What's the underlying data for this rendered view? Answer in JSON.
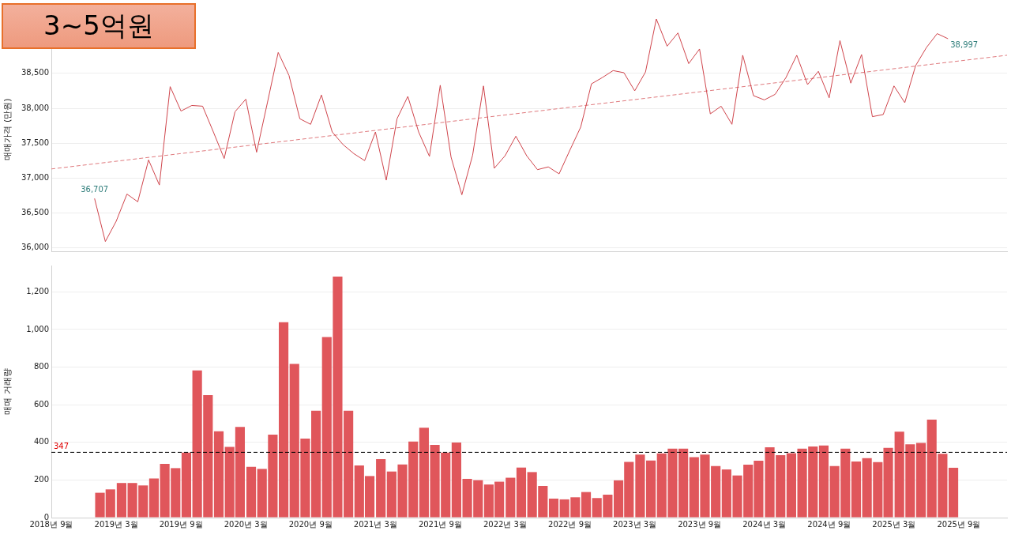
{
  "chart_data": [
    {
      "type": "line",
      "title": "3~5억원",
      "ylabel": "매매가격 (만원)",
      "xlim": [
        "2018-09",
        "2026-01-15"
      ],
      "ylim": [
        35950,
        39450
      ],
      "yticks": [
        {
          "value": 36000,
          "label": "36,000"
        },
        {
          "value": 36500,
          "label": "36,500"
        },
        {
          "value": 37000,
          "label": "37,000"
        },
        {
          "value": 37500,
          "label": "37,500"
        },
        {
          "value": 38000,
          "label": "38,000"
        },
        {
          "value": 38500,
          "label": "38,500"
        }
      ],
      "tick_labels": "y",
      "grid": "y",
      "legend": false,
      "marker": "none",
      "x": [
        "2019-01",
        "2019-02",
        "2019-03",
        "2019-04",
        "2019-05",
        "2019-06",
        "2019-07",
        "2019-08",
        "2019-09",
        "2019-10",
        "2019-11",
        "2019-12",
        "2020-01",
        "2020-02",
        "2020-03",
        "2020-04",
        "2020-05",
        "2020-06",
        "2020-07",
        "2020-08",
        "2020-09",
        "2020-10",
        "2020-11",
        "2020-12",
        "2021-01",
        "2021-02",
        "2021-03",
        "2021-04",
        "2021-05",
        "2021-06",
        "2021-07",
        "2021-08",
        "2021-09",
        "2021-10",
        "2021-11",
        "2021-12",
        "2022-01",
        "2022-02",
        "2022-03",
        "2022-04",
        "2022-05",
        "2022-06",
        "2022-07",
        "2022-08",
        "2022-09",
        "2022-10",
        "2022-11",
        "2022-12",
        "2023-01",
        "2023-02",
        "2023-03",
        "2023-04",
        "2023-05",
        "2023-06",
        "2023-07",
        "2023-08",
        "2023-09",
        "2023-10",
        "2023-11",
        "2023-12",
        "2024-01",
        "2024-02",
        "2024-03",
        "2024-04",
        "2024-05",
        "2024-06",
        "2024-07",
        "2024-08",
        "2024-09",
        "2024-10",
        "2024-11",
        "2024-12",
        "2025-01",
        "2025-02",
        "2025-03",
        "2025-04",
        "2025-05",
        "2025-06",
        "2025-07",
        "2025-08"
      ],
      "series": [
        {
          "color": "#d0454c",
          "line_style": "solid",
          "values": [
            36707,
            36090,
            36380,
            36770,
            36660,
            37260,
            36900,
            38310,
            37960,
            38040,
            38030,
            37660,
            37280,
            37950,
            38130,
            37370,
            38080,
            38800,
            38470,
            37850,
            37770,
            38190,
            37660,
            37480,
            37350,
            37250,
            37660,
            36970,
            37850,
            38170,
            37660,
            37310,
            38330,
            37300,
            36760,
            37330,
            38320,
            37140,
            37320,
            37600,
            37320,
            37120,
            37160,
            37060,
            37400,
            37730,
            38350,
            38440,
            38540,
            38510,
            38250,
            38520,
            39280,
            38890,
            39080,
            38640,
            38850,
            37920,
            38030,
            37770,
            38760,
            38180,
            38120,
            38200,
            38440,
            38760,
            38340,
            38530,
            38150,
            38970,
            38360,
            38770,
            37880,
            37910,
            38320,
            38080,
            38610,
            38870,
            39070,
            38997
          ],
          "value_labels": [
            "36,707",
            null,
            null,
            null,
            null,
            null,
            null,
            null,
            null,
            null,
            null,
            null,
            null,
            null,
            null,
            null,
            null,
            null,
            null,
            null,
            null,
            null,
            null,
            null,
            null,
            null,
            null,
            null,
            null,
            null,
            null,
            null,
            null,
            null,
            null,
            null,
            null,
            null,
            null,
            null,
            null,
            null,
            null,
            null,
            null,
            null,
            null,
            null,
            null,
            null,
            null,
            null,
            null,
            null,
            null,
            null,
            null,
            null,
            null,
            null,
            null,
            null,
            null,
            null,
            null,
            null,
            null,
            null,
            null,
            null,
            null,
            null,
            null,
            null,
            null,
            null,
            null,
            null,
            null,
            "38,997"
          ]
        },
        {
          "color": "#e07a7e",
          "line_style": "dashed",
          "x": [
            "2018-09",
            "2026-01-15"
          ],
          "values": [
            37130,
            38760
          ]
        }
      ]
    },
    {
      "type": "bar",
      "ylabel": "매매 거래량",
      "xlim": [
        "2018-09",
        "2026-01-15"
      ],
      "xticks": [
        {
          "value": "2018-09",
          "label": "2018년 9월"
        },
        {
          "value": "2019-03",
          "label": "2019년 3월"
        },
        {
          "value": "2019-09",
          "label": "2019년 9월"
        },
        {
          "value": "2020-03",
          "label": "2020년 3월"
        },
        {
          "value": "2020-09",
          "label": "2020년 9월"
        },
        {
          "value": "2021-03",
          "label": "2021년 3월"
        },
        {
          "value": "2021-09",
          "label": "2021년 9월"
        },
        {
          "value": "2022-03",
          "label": "2022년 3월"
        },
        {
          "value": "2022-09",
          "label": "2022년 9월"
        },
        {
          "value": "2023-03",
          "label": "2023년 3월"
        },
        {
          "value": "2023-09",
          "label": "2023년 9월"
        },
        {
          "value": "2024-03",
          "label": "2024년 3월"
        },
        {
          "value": "2024-09",
          "label": "2024년 9월"
        },
        {
          "value": "2025-03",
          "label": "2025년 3월"
        },
        {
          "value": "2025-09",
          "label": "2025년 9월"
        }
      ],
      "ylim": [
        0,
        1340
      ],
      "yticks": [
        0,
        200,
        400,
        600,
        800,
        {
          "value": 1000,
          "label": "1,000"
        },
        {
          "value": 1200,
          "label": "1,200"
        }
      ],
      "grid": "y",
      "legend": false,
      "x": [
        "2019-01-16",
        "2019-02-15",
        "2019-03-16",
        "2019-04-16",
        "2019-05-16",
        "2019-06-16",
        "2019-07-16",
        "2019-08-16",
        "2019-09-16",
        "2019-10-16",
        "2019-11-16",
        "2019-12-16",
        "2020-01-16",
        "2020-02-15",
        "2020-03-16",
        "2020-04-16",
        "2020-05-16",
        "2020-06-16",
        "2020-07-16",
        "2020-08-16",
        "2020-09-16",
        "2020-10-16",
        "2020-11-16",
        "2020-12-16",
        "2021-01-16",
        "2021-02-15",
        "2021-03-16",
        "2021-04-16",
        "2021-05-16",
        "2021-06-16",
        "2021-07-16",
        "2021-08-16",
        "2021-09-16",
        "2021-10-16",
        "2021-11-16",
        "2021-12-16",
        "2022-01-16",
        "2022-02-15",
        "2022-03-16",
        "2022-04-16",
        "2022-05-16",
        "2022-06-16",
        "2022-07-16",
        "2022-08-16",
        "2022-09-16",
        "2022-10-16",
        "2022-11-16",
        "2022-12-16",
        "2023-01-16",
        "2023-02-15",
        "2023-03-16",
        "2023-04-16",
        "2023-05-16",
        "2023-06-16",
        "2023-07-16",
        "2023-08-16",
        "2023-09-16",
        "2023-10-16",
        "2023-11-16",
        "2023-12-16",
        "2024-01-16",
        "2024-02-15",
        "2024-03-16",
        "2024-04-16",
        "2024-05-16",
        "2024-06-16",
        "2024-07-16",
        "2024-08-16",
        "2024-09-16",
        "2024-10-16",
        "2024-11-16",
        "2024-12-16",
        "2025-01-16",
        "2025-02-15",
        "2025-03-16",
        "2025-04-16",
        "2025-05-16",
        "2025-06-16",
        "2025-07-16",
        "2025-08-16"
      ],
      "series": [
        {
          "color": "#e0565b",
          "values": [
            132,
            150,
            184,
            184,
            171,
            208,
            286,
            263,
            346,
            782,
            651,
            459,
            376,
            482,
            270,
            259,
            441,
            1039,
            817,
            420,
            568,
            960,
            1281,
            568,
            277,
            221,
            311,
            245,
            282,
            404,
            478,
            386,
            346,
            399,
            206,
            199,
            176,
            191,
            212,
            266,
            242,
            168,
            101,
            97,
            108,
            136,
            104,
            122,
            198,
            296,
            335,
            304,
            341,
            367,
            367,
            321,
            335,
            274,
            256,
            224,
            281,
            302,
            374,
            332,
            342,
            367,
            378,
            383,
            274,
            367,
            298,
            316,
            295,
            371,
            457,
            390,
            397,
            521,
            339,
            265
          ]
        }
      ],
      "ref_lines": [
        {
          "axis": "y",
          "value": 347,
          "label": "347",
          "color": "#000000",
          "line_style": "dashed"
        }
      ]
    }
  ]
}
